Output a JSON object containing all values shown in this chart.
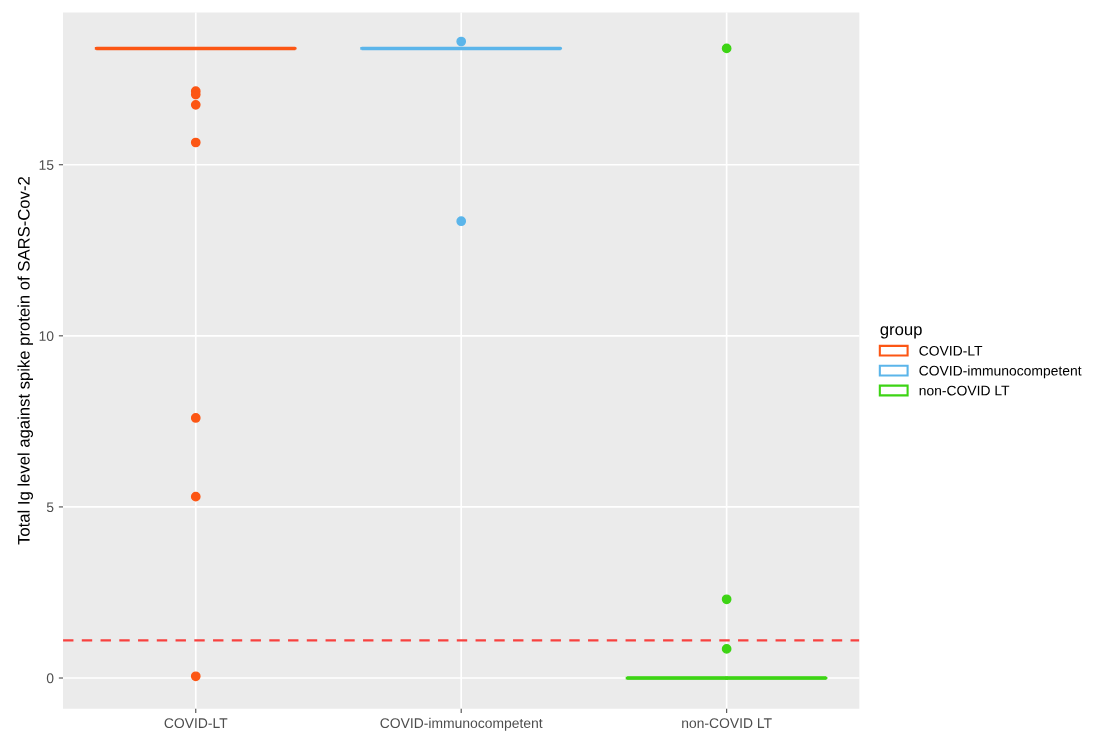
{
  "chart_data": {
    "type": "box",
    "ylabel": "Total Ig level against spike protein of SARS-Cov-2",
    "legend_title": "group",
    "categories": [
      "COVID-LT",
      "COVID-immunocompetent",
      "non-COVID LT"
    ],
    "series": [
      {
        "name": "COVID-LT",
        "color": "#fc5614",
        "boxes": [
          {
            "low": 18.4,
            "q1": 18.4,
            "median": 18.4,
            "q3": 18.4,
            "high": 18.4,
            "outliers": [
              17.15,
              17.05,
              16.75,
              15.65,
              7.6,
              5.3,
              0.05
            ]
          },
          null,
          null
        ]
      },
      {
        "name": "COVID-immunocompetent",
        "color": "#5bb5ea",
        "boxes": [
          null,
          {
            "low": 18.4,
            "q1": 18.4,
            "median": 18.4,
            "q3": 18.4,
            "high": 18.4,
            "outliers": [
              18.6,
              13.35
            ]
          },
          null
        ]
      },
      {
        "name": "non-COVID LT",
        "color": "#3dd414",
        "boxes": [
          null,
          null,
          {
            "low": 0.0,
            "q1": 0.0,
            "median": 0.0,
            "q3": 0.0,
            "high": 0.0,
            "outliers": [
              18.4,
              2.3,
              0.85
            ]
          }
        ]
      }
    ],
    "ylim": [
      -0.9,
      19.45
    ],
    "yticks": [
      0,
      5,
      10,
      15
    ],
    "grid": true,
    "legend": "right",
    "ref_lines": [
      {
        "axis": "y",
        "value": 1.1,
        "color": "#f8413f",
        "line_style": "dashed"
      }
    ]
  }
}
